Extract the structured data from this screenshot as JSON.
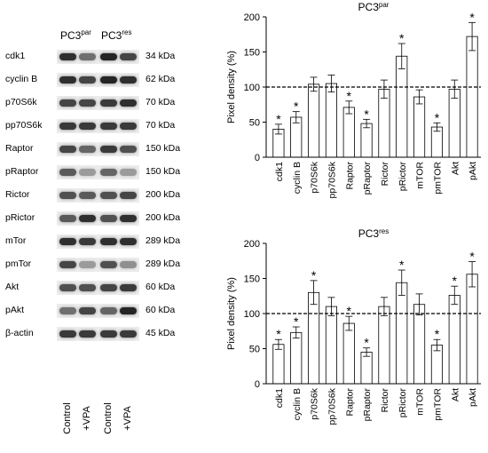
{
  "blot": {
    "group_labels": [
      {
        "base": "PC3",
        "sup": "par"
      },
      {
        "base": "PC3",
        "sup": "res"
      }
    ],
    "lane_labels": [
      "Control",
      "+VPA",
      "Control",
      "+VPA"
    ],
    "rows": [
      {
        "protein": "cdk1",
        "kda": "34 kDa",
        "intensity": [
          0.85,
          0.55,
          0.9,
          0.75
        ]
      },
      {
        "protein": "cyclin B",
        "kda": "62 kDa",
        "intensity": [
          0.85,
          0.75,
          0.9,
          0.85
        ]
      },
      {
        "protein": "p70S6k",
        "kda": "70 kDa",
        "intensity": [
          0.75,
          0.75,
          0.8,
          0.85
        ]
      },
      {
        "protein": "pp70S6k",
        "kda": "70 kDa",
        "intensity": [
          0.8,
          0.8,
          0.8,
          0.8
        ]
      },
      {
        "protein": "Raptor",
        "kda": "150 kDa",
        "intensity": [
          0.75,
          0.6,
          0.8,
          0.7
        ]
      },
      {
        "protein": "pRaptor",
        "kda": "150 kDa",
        "intensity": [
          0.65,
          0.35,
          0.6,
          0.35
        ]
      },
      {
        "protein": "Rictor",
        "kda": "200 kDa",
        "intensity": [
          0.7,
          0.65,
          0.7,
          0.75
        ]
      },
      {
        "protein": "pRictor",
        "kda": "200 kDa",
        "intensity": [
          0.65,
          0.85,
          0.7,
          0.85
        ]
      },
      {
        "protein": "mTor",
        "kda": "289 kDa",
        "intensity": [
          0.85,
          0.8,
          0.85,
          0.85
        ]
      },
      {
        "protein": "pmTor",
        "kda": "289 kDa",
        "intensity": [
          0.75,
          0.35,
          0.7,
          0.4
        ]
      },
      {
        "protein": "Akt",
        "kda": "60 kDa",
        "intensity": [
          0.7,
          0.7,
          0.75,
          0.8
        ]
      },
      {
        "protein": "pAkt",
        "kda": "60 kDa",
        "intensity": [
          0.55,
          0.75,
          0.6,
          0.9
        ]
      },
      {
        "protein": "β-actin",
        "kda": "45 kDa",
        "intensity": [
          0.8,
          0.8,
          0.8,
          0.8
        ]
      }
    ]
  },
  "chart_data": [
    {
      "type": "bar",
      "title": "PC3",
      "title_sup": "par",
      "xlabel": "",
      "ylabel": "Pixel density (%)",
      "ylim": [
        0,
        200
      ],
      "yticks": [
        0,
        50,
        100,
        150,
        200
      ],
      "reference_line": 100,
      "categories": [
        "cdk1",
        "cyclin B",
        "p70S6k",
        "pp70S6k",
        "Raptor",
        "pRaptor",
        "Rictor",
        "pRictor",
        "mTOR",
        "pmTOR",
        "Akt",
        "pAkt"
      ],
      "values": [
        40,
        57,
        104,
        105,
        71,
        48,
        97,
        144,
        86,
        43,
        97,
        172
      ],
      "errors": [
        7,
        8,
        10,
        12,
        9,
        6,
        13,
        18,
        10,
        6,
        13,
        20
      ],
      "significant": [
        true,
        true,
        false,
        false,
        true,
        true,
        false,
        true,
        false,
        true,
        false,
        true
      ],
      "significance_marker": "*"
    },
    {
      "type": "bar",
      "title": "PC3",
      "title_sup": "res",
      "xlabel": "",
      "ylabel": "Pixel density (%)",
      "ylim": [
        0,
        200
      ],
      "yticks": [
        0,
        50,
        100,
        150,
        200
      ],
      "reference_line": 100,
      "categories": [
        "cdk1",
        "cyclin B",
        "p70S6k",
        "pp70S6k",
        "Raptor",
        "pRaptor",
        "Rictor",
        "pRictor",
        "mTOR",
        "pmTOR",
        "Akt",
        "pAkt"
      ],
      "values": [
        56,
        73,
        130,
        110,
        86,
        45,
        110,
        144,
        113,
        55,
        126,
        156
      ],
      "errors": [
        7,
        8,
        17,
        13,
        10,
        6,
        13,
        18,
        15,
        8,
        13,
        18
      ],
      "significant": [
        true,
        true,
        true,
        false,
        true,
        true,
        false,
        true,
        false,
        true,
        true,
        true
      ],
      "significance_marker": "*"
    }
  ]
}
